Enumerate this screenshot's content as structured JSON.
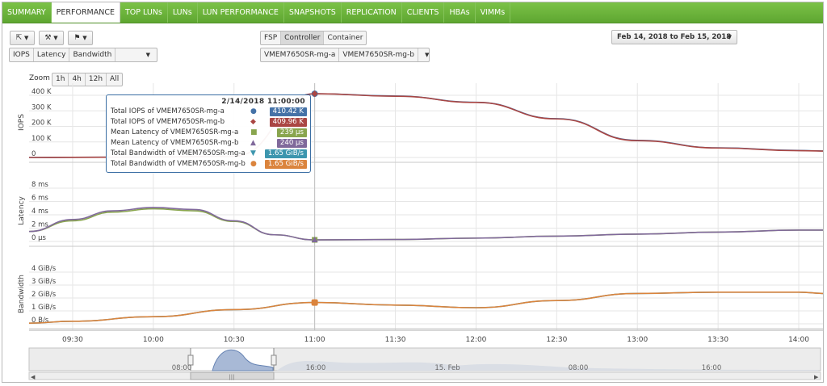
{
  "tabs": [
    {
      "label": "SUMMARY",
      "active": false
    },
    {
      "label": "PERFORMANCE",
      "active": true
    },
    {
      "label": "TOP LUNs",
      "active": false
    },
    {
      "label": "LUNs",
      "active": false
    },
    {
      "label": "LUN PERFORMANCE",
      "active": false
    },
    {
      "label": "SNAPSHOTS",
      "active": false
    },
    {
      "label": "REPLICATION",
      "active": false
    },
    {
      "label": "CLIENTS",
      "active": false
    },
    {
      "label": "HBAs",
      "active": false
    },
    {
      "label": "VIMMs",
      "active": false
    }
  ],
  "toolbar": {
    "export_icon": "export-icon",
    "tools_icon": "wrench-icon",
    "flag_icon": "flag-icon",
    "metrics": [
      "IOPS",
      "Latency",
      "Bandwidth"
    ],
    "view_modes": [
      "FSP",
      "Controller",
      "Container"
    ],
    "active_view": "Controller",
    "controllers": [
      "VMEM7650SR-mg-a",
      "VMEM7650SR-mg-b"
    ],
    "date_range": "Feb 14, 2018 to Feb 15, 2018"
  },
  "zoom": {
    "label": "Zoom",
    "options": [
      "1h",
      "4h",
      "12h",
      "All"
    ]
  },
  "colors": {
    "iops_a": "#4572a7",
    "iops_b": "#aa4643",
    "lat_a": "#89a54e",
    "lat_b": "#80699b",
    "bw_a": "#3d96ae",
    "bw_b": "#db843d",
    "tab_green": "#6ab23a"
  },
  "chart_data": {
    "type": "line",
    "x_tick_labels": [
      "09:30",
      "10:00",
      "10:30",
      "11:00",
      "11:30",
      "12:00",
      "12:30",
      "13:00",
      "13:30",
      "14:00"
    ],
    "x_range_hours": [
      9.23,
      14.16
    ],
    "panels": [
      {
        "ylabel": "IOPS",
        "y_ticks": [
          "0",
          "100 K",
          "200 K",
          "300 K",
          "400 K"
        ],
        "ylim": [
          0,
          400000
        ],
        "series": [
          {
            "name": "Total IOPS of VMEM7650SR-mg-a",
            "x": [
              9.23,
              9.5,
              10,
              10.5,
              11,
              11.5,
              12,
              12.5,
              13,
              13.5,
              14,
              14.16
            ],
            "y": [
              0,
              1000,
              3000,
              8000,
              410420,
              395000,
              355000,
              250000,
              110000,
              62000,
              45000,
              42000
            ]
          },
          {
            "name": "Total IOPS of VMEM7650SR-mg-b",
            "x": [
              9.23,
              9.5,
              10,
              10.5,
              11,
              11.5,
              12,
              12.5,
              13,
              13.5,
              14,
              14.16
            ],
            "y": [
              0,
              1000,
              3000,
              8000,
              409960,
              394000,
              354000,
              248000,
              108000,
              61000,
              44000,
              41000
            ]
          }
        ]
      },
      {
        "ylabel": "Latency",
        "y_ticks": [
          "0 µs",
          "2 ms",
          "4 ms",
          "6 ms",
          "8 ms"
        ],
        "ylim": [
          0,
          8
        ],
        "series": [
          {
            "name": "Mean Latency of VMEM7650SR-mg-a",
            "x": [
              9.23,
              9.5,
              9.75,
              10,
              10.25,
              10.5,
              10.75,
              11,
              11.5,
              12,
              12.5,
              13,
              13.5,
              14,
              14.16
            ],
            "y": [
              1.5,
              3.1,
              4.4,
              4.9,
              4.6,
              3.0,
              1.0,
              0.24,
              0.3,
              0.5,
              0.8,
              1.1,
              1.4,
              1.7,
              1.7
            ]
          },
          {
            "name": "Mean Latency of VMEM7650SR-mg-b",
            "x": [
              9.23,
              9.5,
              9.75,
              10,
              10.25,
              10.5,
              10.75,
              11,
              11.5,
              12,
              12.5,
              13,
              13.5,
              14,
              14.16
            ],
            "y": [
              1.5,
              3.3,
              4.6,
              5.1,
              4.8,
              3.1,
              1.0,
              0.24,
              0.3,
              0.5,
              0.8,
              1.1,
              1.4,
              1.7,
              1.7
            ]
          }
        ]
      },
      {
        "ylabel": "Bandwidth",
        "y_ticks": [
          "0 B/s",
          "1 GiB/s",
          "2 GiB/s",
          "3 GiB/s",
          "4 GiB/s"
        ],
        "ylim": [
          0,
          4
        ],
        "series": [
          {
            "name": "Total Bandwidth of VMEM7650SR-mg-a",
            "x": [
              9.23,
              9.5,
              10,
              10.5,
              11,
              11.5,
              12,
              12.5,
              13,
              13.5,
              14,
              14.16
            ],
            "y": [
              0.05,
              0.2,
              0.55,
              1.1,
              1.65,
              1.45,
              1.25,
              1.8,
              2.35,
              2.45,
              2.45,
              2.35
            ]
          },
          {
            "name": "Total Bandwidth of VMEM7650SR-mg-b",
            "x": [
              9.23,
              9.5,
              10,
              10.5,
              11,
              11.5,
              12,
              12.5,
              13,
              13.5,
              14,
              14.16
            ],
            "y": [
              0.05,
              0.2,
              0.55,
              1.1,
              1.65,
              1.45,
              1.25,
              1.8,
              2.35,
              2.45,
              2.45,
              2.35
            ]
          }
        ]
      }
    ],
    "tooltip": {
      "time": "2/14/2018 11:00:00",
      "rows": [
        {
          "label": "Total IOPS of VMEM7650SR-mg-a",
          "value": "410.42 K",
          "symbol": "●",
          "color": "#4572a7"
        },
        {
          "label": "Total IOPS of VMEM7650SR-mg-b",
          "value": "409.96 K",
          "symbol": "◆",
          "color": "#aa4643"
        },
        {
          "label": "Mean Latency of VMEM7650SR-mg-a",
          "value": "239 µs",
          "symbol": "■",
          "color": "#89a54e"
        },
        {
          "label": "Mean Latency of VMEM7650SR-mg-b",
          "value": "240 µs",
          "symbol": "▲",
          "color": "#80699b"
        },
        {
          "label": "Total Bandwidth of VMEM7650SR-mg-a",
          "value": "1.65 GiB/s",
          "symbol": "▼",
          "color": "#3d96ae"
        },
        {
          "label": "Total Bandwidth of VMEM7650SR-mg-b",
          "value": "1.65 GiB/s",
          "symbol": "●",
          "color": "#db843d"
        }
      ]
    },
    "navigator": {
      "labels": [
        "08:00",
        "16:00",
        "15. Feb",
        "08:00",
        "16:00"
      ]
    }
  }
}
